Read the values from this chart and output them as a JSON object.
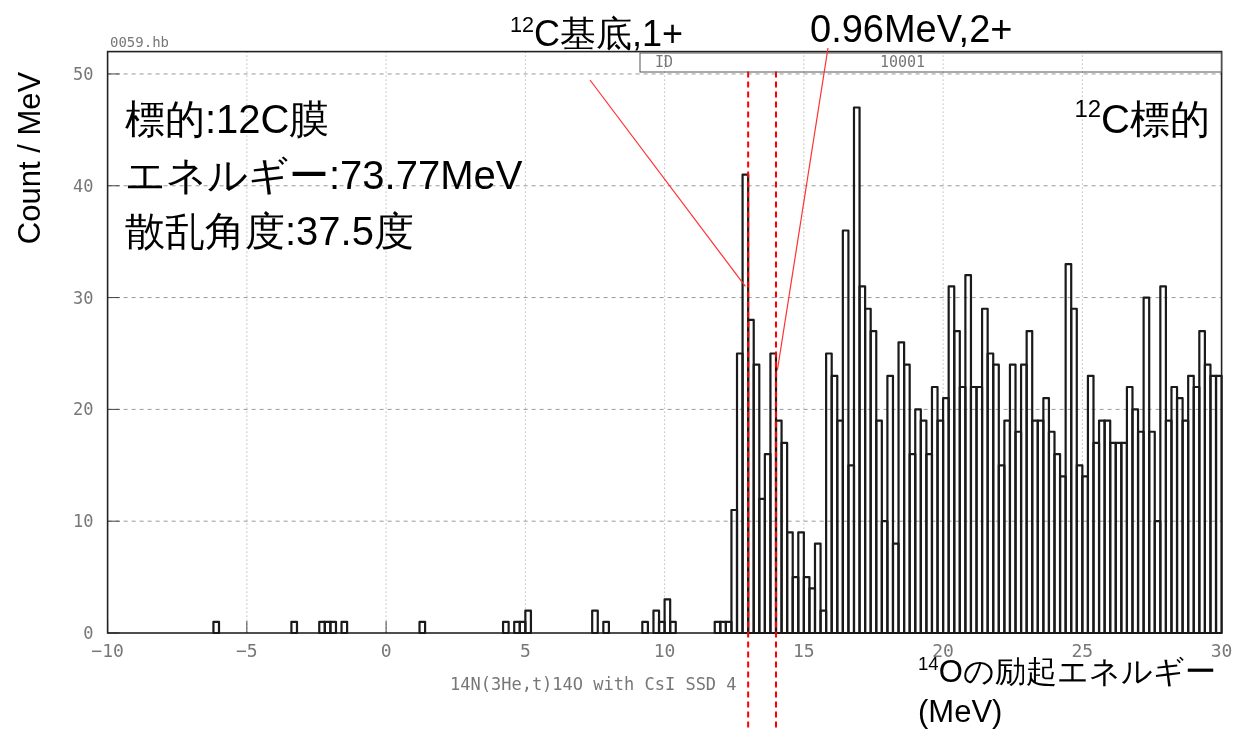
{
  "chart_data": {
    "type": "histogram",
    "xlabel": "$^{14}$Oの励起エネルギー (MeV)",
    "ylabel": "Count / MeV",
    "bins": [
      -10,
      -9.8,
      -9.6,
      -9.4,
      -9.2,
      -9,
      -8.8,
      -8.6,
      -8.4,
      -8.2,
      -8,
      -7.8,
      -7.6,
      -7.4,
      -7.2,
      -7,
      -6.8,
      -6.6,
      -6.4,
      -6.2,
      -6,
      -5.8,
      -5.6,
      -5.4,
      -5.2,
      -5,
      -4.8,
      -4.6,
      -4.4,
      -4.2,
      -4,
      -3.8,
      -3.6,
      -3.4,
      -3.2,
      -3,
      -2.8,
      -2.6,
      -2.4,
      -2.2,
      -2,
      -1.8,
      -1.6,
      -1.4,
      -1.2,
      -1,
      -0.8,
      -0.6,
      -0.4,
      -0.2,
      0,
      0.2,
      0.4,
      0.6,
      0.8,
      1,
      1.2,
      1.4,
      1.6,
      1.8,
      2,
      2.2,
      2.4,
      2.6,
      2.8,
      3,
      3.2,
      3.4,
      3.6,
      3.8,
      4,
      4.2,
      4.4,
      4.6,
      4.8,
      5,
      5.2,
      5.4,
      5.6,
      5.8,
      6,
      6.2,
      6.4,
      6.6,
      6.8,
      7,
      7.2,
      7.4,
      7.6,
      7.8,
      8,
      8.2,
      8.4,
      8.6,
      8.8,
      9,
      9.2,
      9.4,
      9.6,
      9.8,
      10,
      10.2,
      10.4,
      10.6,
      10.8,
      11,
      11.2,
      11.4,
      11.6,
      11.8,
      12,
      12.2,
      12.4,
      12.6,
      12.8,
      13,
      13.2,
      13.4,
      13.6,
      13.8,
      14,
      14.2,
      14.4,
      14.6,
      14.8,
      15,
      15.2,
      15.4,
      15.6,
      15.8,
      16,
      16.2,
      16.4,
      16.6,
      16.8,
      17,
      17.2,
      17.4,
      17.6,
      17.8,
      18,
      18.2,
      18.4,
      18.6,
      18.8,
      19,
      19.2,
      19.4,
      19.6,
      19.8,
      20,
      20.2,
      20.4,
      20.6,
      20.8,
      21,
      21.2,
      21.4,
      21.6,
      21.8,
      22,
      22.2,
      22.4,
      22.6,
      22.8,
      23,
      23.2,
      23.4,
      23.6,
      23.8,
      24,
      24.2,
      24.4,
      24.6,
      24.8,
      25,
      25.2,
      25.4,
      25.6,
      25.8,
      26,
      26.2,
      26.4,
      26.6,
      26.8,
      27,
      27.2,
      27.4,
      27.6,
      27.8,
      28,
      28.2,
      28.4,
      28.6,
      28.8,
      29,
      29.2,
      29.4,
      29.6,
      29.8,
      30
    ],
    "values": [
      0,
      0,
      0,
      0,
      0,
      0,
      0,
      0,
      0,
      0,
      0,
      0,
      0,
      0,
      0,
      0,
      0,
      0,
      0,
      1,
      0,
      0,
      0,
      0,
      0,
      0,
      0,
      0,
      0,
      0,
      0,
      0,
      0,
      1,
      0,
      0,
      0,
      0,
      1,
      1,
      1,
      0,
      1,
      0,
      0,
      0,
      0,
      0,
      0,
      0,
      0,
      0,
      0,
      0,
      0,
      0,
      1,
      0,
      0,
      0,
      0,
      0,
      0,
      0,
      0,
      0,
      0,
      0,
      0,
      0,
      0,
      1,
      0,
      1,
      1,
      2,
      0,
      0,
      0,
      0,
      0,
      0,
      0,
      0,
      0,
      0,
      0,
      2,
      0,
      1,
      0,
      0,
      0,
      0,
      0,
      0,
      1,
      0,
      2,
      1,
      3,
      1,
      0,
      0,
      0,
      0,
      0,
      0,
      0,
      1,
      1,
      1,
      11,
      25,
      41,
      28,
      24,
      12,
      16,
      25,
      19,
      17,
      9,
      5,
      9,
      5,
      4,
      8,
      2,
      25,
      23,
      19,
      36,
      15,
      47,
      31,
      29,
      27,
      19,
      10,
      23,
      8,
      26,
      24,
      16,
      20,
      19,
      16,
      22,
      19,
      21,
      31,
      27,
      22,
      32,
      22,
      22,
      29,
      25,
      24,
      15,
      19,
      24,
      18,
      24,
      27,
      19,
      19,
      21,
      18,
      16,
      14,
      33,
      29,
      15,
      14,
      23,
      17,
      19,
      19,
      17,
      17,
      17,
      22,
      20,
      18,
      30,
      18,
      10,
      31,
      19,
      22,
      21,
      19,
      23,
      22,
      27,
      24,
      23,
      23
    ],
    "color": "#1a1a1a",
    "xlim": [
      -10,
      30
    ],
    "ylim": [
      0,
      52
    ],
    "xticks": [
      -10,
      -5,
      0,
      5,
      10,
      15,
      20,
      25,
      30
    ],
    "yticks": [
      0,
      10,
      20,
      30,
      40,
      50
    ],
    "grid": true,
    "ref_lines": [
      {
        "axis": "x",
        "value": 13.0,
        "color": "#ff0000",
        "line_style": "dashed"
      },
      {
        "axis": "x",
        "value": 14.0,
        "color": "#ff0000",
        "line_style": "dashed"
      }
    ],
    "annotations": [
      "0059.hb",
      "ID",
      "10001",
      "14N(3He,t)14O with CsI SSD 4",
      "標的:12C膜",
      "エネルギー:73.77MeV",
      "散乱角度:37.5度",
      "$^{12}$C標的",
      {
        "text": "$^{12}$C基底,1+",
        "x": 12.9,
        "y": 31
      },
      {
        "text": "0.96MeV,2+",
        "x": 14.05,
        "y": 23.5
      }
    ]
  }
}
